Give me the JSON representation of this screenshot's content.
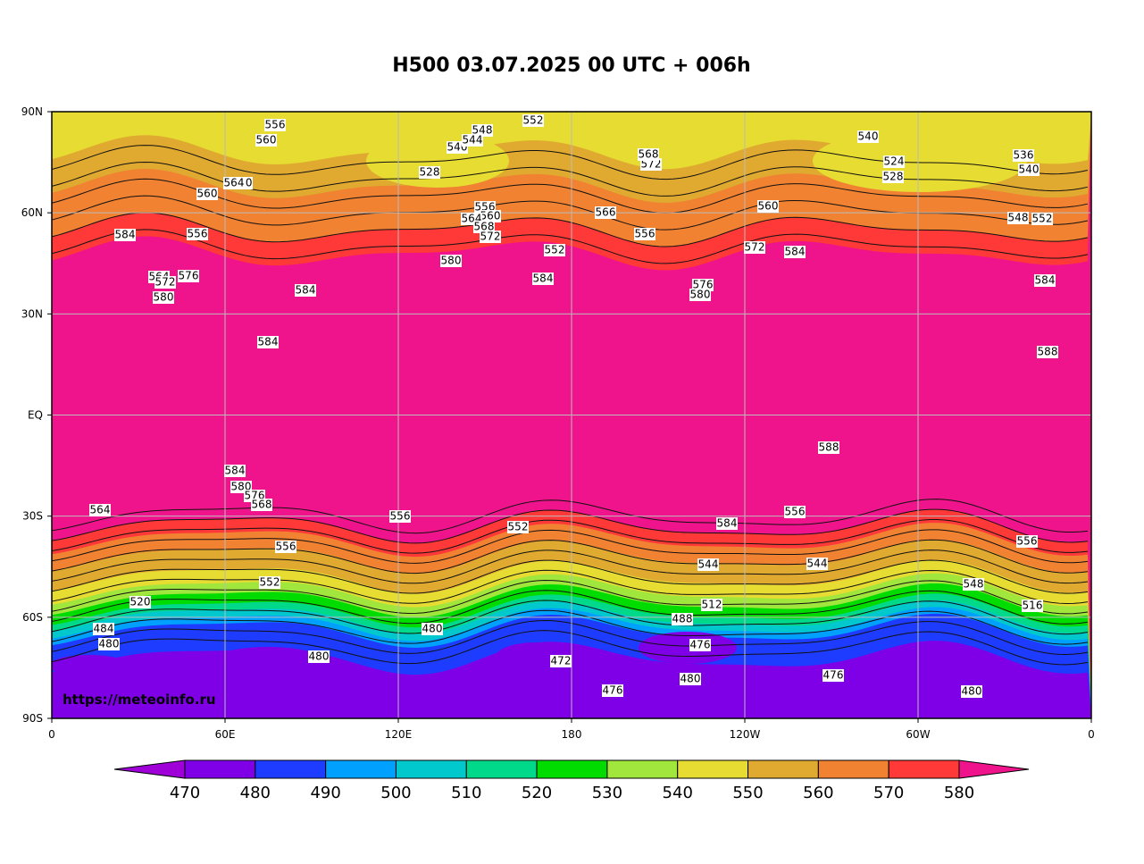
{
  "header": {
    "title": "H500  03.07.2025 00 UTC + 006h"
  },
  "map": {
    "lat_labels": [
      "90N",
      "60N",
      "30N",
      "EQ",
      "30S",
      "60S",
      "90S"
    ],
    "lon_labels": [
      "0",
      "60E",
      "120E",
      "180",
      "120W",
      "60W",
      "0"
    ],
    "watermark": "https://meteoinfo.ru",
    "contour_labels": [
      "556",
      "560",
      "548",
      "552",
      "540",
      "544",
      "528",
      "560",
      "564",
      "572",
      "568",
      "540",
      "528",
      "524",
      "536",
      "540",
      "552",
      "548",
      "556",
      "560",
      "564",
      "568",
      "572",
      "584",
      "556",
      "560",
      "566",
      "552",
      "584",
      "580",
      "560",
      "572",
      "584",
      "556",
      "584",
      "576",
      "580",
      "552",
      "564",
      "576",
      "572",
      "580",
      "584",
      "584",
      "588",
      "588",
      "584",
      "580",
      "576",
      "564",
      "568",
      "556",
      "556",
      "584",
      "552",
      "556",
      "544",
      "520",
      "480",
      "472",
      "476",
      "480",
      "476",
      "480",
      "484",
      "480",
      "488",
      "512",
      "516",
      "556",
      "552",
      "544",
      "548",
      "476",
      "480"
    ]
  },
  "colorbar": {
    "levels": [
      470,
      480,
      490,
      500,
      510,
      520,
      530,
      540,
      550,
      560,
      570,
      580
    ],
    "colors": [
      "#a000d8",
      "#7f00e6",
      "#1e3cff",
      "#00a0ff",
      "#00c8cc",
      "#00d88a",
      "#00dc00",
      "#a0e63c",
      "#e6dc32",
      "#e0aa30",
      "#f08232",
      "#ff3838",
      "#f0148c"
    ]
  }
}
